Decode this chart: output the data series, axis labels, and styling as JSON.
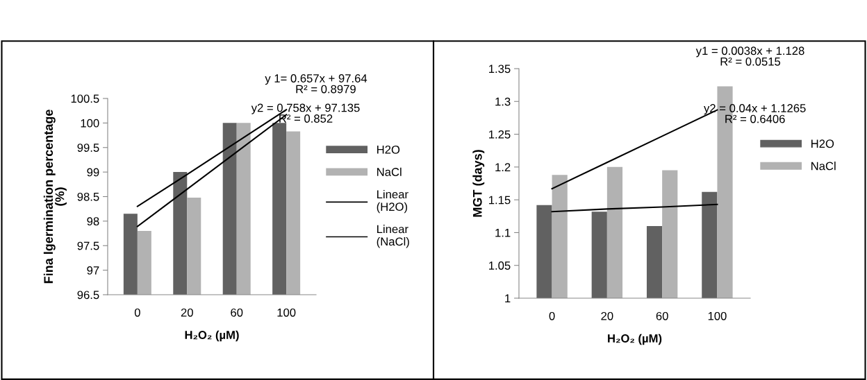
{
  "chart_data": [
    {
      "type": "bar",
      "xlabel": "H₂O₂ (µM)",
      "ylabel": "Fina lgermination percentage\n(%)",
      "categories": [
        "0",
        "20",
        "60",
        "100"
      ],
      "series": [
        {
          "name": "H2O",
          "color": "#616161",
          "values": [
            98.15,
            99.0,
            100.0,
            100.0
          ]
        },
        {
          "name": "NaCl",
          "color": "#b2b2b2",
          "values": [
            97.8,
            98.48,
            100.0,
            99.83
          ]
        },
        {
          "name": "Linear (H2O)",
          "type": "line",
          "color": "#000000",
          "values": [
            98.3,
            98.95,
            99.61,
            100.27
          ]
        },
        {
          "name": "Linear (NaCl)",
          "type": "line",
          "color": "#000000",
          "values": [
            97.89,
            98.65,
            99.41,
            100.17
          ]
        }
      ],
      "ylim": [
        96.5,
        100.5
      ],
      "yticks": [
        96.5,
        97,
        97.5,
        98,
        98.5,
        99,
        99.5,
        100,
        100.5
      ],
      "annotations": [
        "y 1= 0.657x + 97.64\n      R² = 0.8979",
        "y2 = 0.758x + 97.135\nR² = 0.852"
      ],
      "grid": false,
      "legend": "right"
    },
    {
      "type": "bar",
      "xlabel": "H₂O₂ (µM)",
      "ylabel": "MGT (days)",
      "categories": [
        "0",
        "20",
        "60",
        "100"
      ],
      "series": [
        {
          "name": "H2O",
          "color": "#616161",
          "values": [
            1.142,
            1.132,
            1.11,
            1.162
          ]
        },
        {
          "name": "NaCl",
          "color": "#b2b2b2",
          "values": [
            1.188,
            1.2,
            1.195,
            1.323
          ]
        },
        {
          "type": "line",
          "color": "#000000",
          "values": [
            1.132,
            1.136,
            1.139,
            1.143
          ]
        },
        {
          "type": "line",
          "color": "#000000",
          "values": [
            1.167,
            1.207,
            1.247,
            1.287
          ]
        }
      ],
      "ylim": [
        1,
        1.35
      ],
      "yticks": [
        1,
        1.05,
        1.1,
        1.15,
        1.2,
        1.25,
        1.3,
        1.35
      ],
      "annotations": [
        "y1 = 0.0038x + 1.128\nR² = 0.0515",
        "y2 = 0.04x + 1.1265\nR² = 0.6406"
      ],
      "grid": false,
      "legend": "right"
    }
  ]
}
